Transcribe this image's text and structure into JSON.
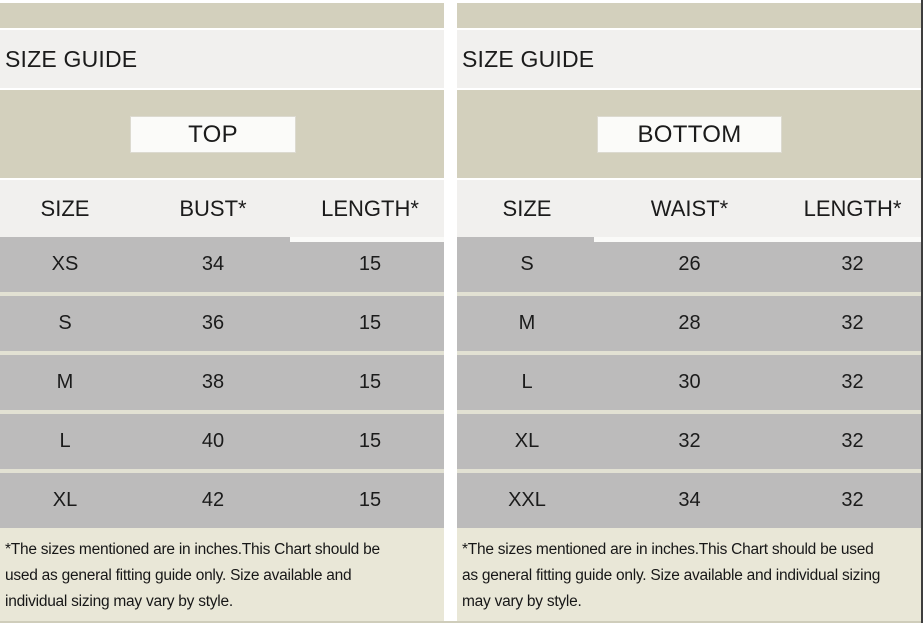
{
  "colors": {
    "khaki_band": "#d3d0bd",
    "light_band": "#f1f0ee",
    "row_gray": "#bcbbbb",
    "row_separator": "#e2e1d3",
    "footnote_bg": "#e9e7d7",
    "category_box_bg": "#fbfbf9",
    "divider": "#ffffff",
    "right_edge": "#3d3d3d",
    "text": "#1b1b1b"
  },
  "panels": [
    {
      "title": "SIZE GUIDE",
      "category": "TOP",
      "columns": [
        "SIZE",
        "BUST*",
        "LENGTH*"
      ],
      "rows": [
        [
          "XS",
          "34",
          "15"
        ],
        [
          "S",
          "36",
          "15"
        ],
        [
          "M",
          "38",
          "15"
        ],
        [
          "L",
          "40",
          "15"
        ],
        [
          "XL",
          "42",
          "15"
        ]
      ],
      "footnote_lines": [
        "*The sizes mentioned are in inches.This Chart should be",
        "used as general fitting guide only. Size available and",
        "individual sizing may vary by style."
      ]
    },
    {
      "title": "SIZE GUIDE",
      "category": "BOTTOM",
      "columns": [
        "SIZE",
        "WAIST*",
        "LENGTH*"
      ],
      "rows": [
        [
          "S",
          "26",
          "32"
        ],
        [
          "M",
          "28",
          "32"
        ],
        [
          "L",
          "30",
          "32"
        ],
        [
          "XL",
          "32",
          "32"
        ],
        [
          "XXL",
          "34",
          "32"
        ]
      ],
      "footnote_lines": [
        "*The sizes mentioned are in inches.This Chart should be used",
        "as general fitting guide only. Size available and individual sizing",
        "may vary by style."
      ]
    }
  ]
}
